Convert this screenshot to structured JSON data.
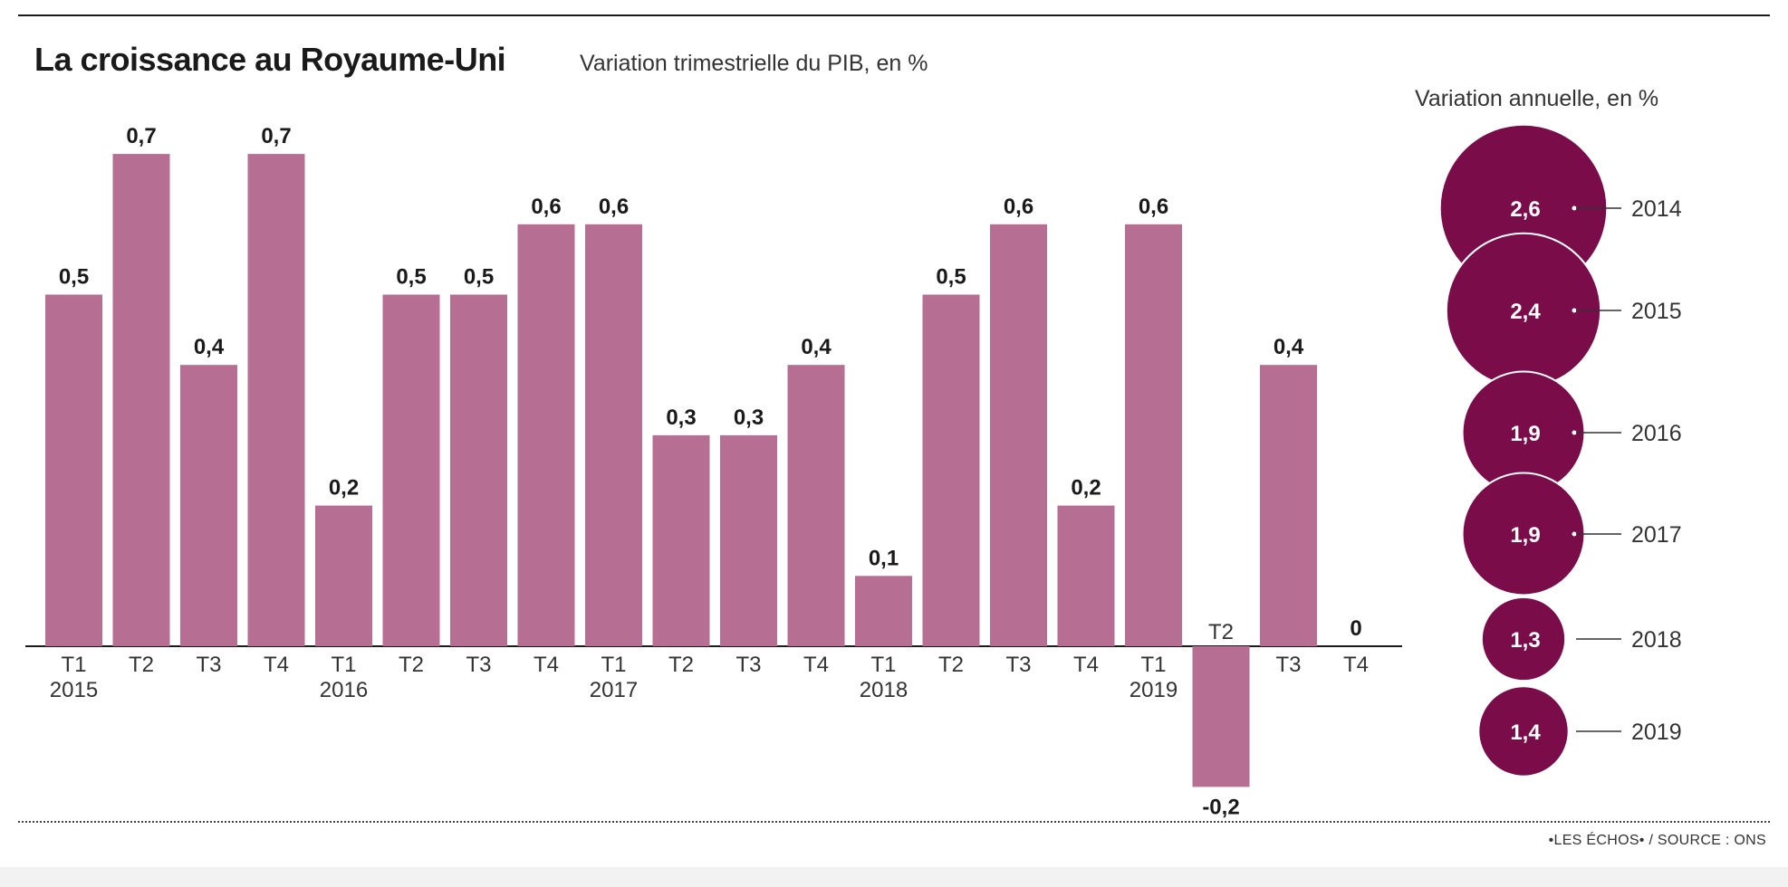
{
  "title": "La croissance au Royaume-Uni",
  "subtitle": "Variation trimestrielle du PIB, en %",
  "annual_title": "Variation annuelle, en %",
  "source": "•LES ÉCHOS• / SOURCE : ONS",
  "colors": {
    "bar": "#b76e93",
    "circle": "#7a0c4a",
    "axis": "#1a1a1a"
  },
  "chart_data": [
    {
      "type": "bar",
      "title": "La croissance au Royaume-Uni",
      "subtitle": "Variation trimestrielle du PIB, en %",
      "quarters": [
        "T1",
        "T2",
        "T3",
        "T4",
        "T1",
        "T2",
        "T3",
        "T4",
        "T1",
        "T2",
        "T3",
        "T4",
        "T1",
        "T2",
        "T3",
        "T4",
        "T1",
        "T2",
        "T3",
        "T4"
      ],
      "years": [
        "2015",
        "",
        "",
        "",
        "2016",
        "",
        "",
        "",
        "2017",
        "",
        "",
        "",
        "2018",
        "",
        "",
        "",
        "2019",
        "",
        "",
        ""
      ],
      "values": [
        0.5,
        0.7,
        0.4,
        0.7,
        0.2,
        0.5,
        0.5,
        0.6,
        0.6,
        0.3,
        0.3,
        0.4,
        0.1,
        0.5,
        0.6,
        0.2,
        0.6,
        -0.2,
        0.4,
        0
      ],
      "labels": [
        "0,5",
        "0,7",
        "0,4",
        "0,7",
        "0,2",
        "0,5",
        "0,5",
        "0,6",
        "0,6",
        "0,3",
        "0,3",
        "0,4",
        "0,1",
        "0,5",
        "0,6",
        "0,2",
        "0,6",
        "-0,2",
        "0,4",
        "0"
      ]
    },
    {
      "type": "bubble",
      "title": "Variation annuelle, en %",
      "years": [
        "2014",
        "2015",
        "2016",
        "2017",
        "2018",
        "2019"
      ],
      "values": [
        2.6,
        2.4,
        1.9,
        1.9,
        1.3,
        1.4
      ],
      "labels": [
        "2,6",
        "2,4",
        "1,9",
        "1,9",
        "1,3",
        "1,4"
      ]
    }
  ]
}
